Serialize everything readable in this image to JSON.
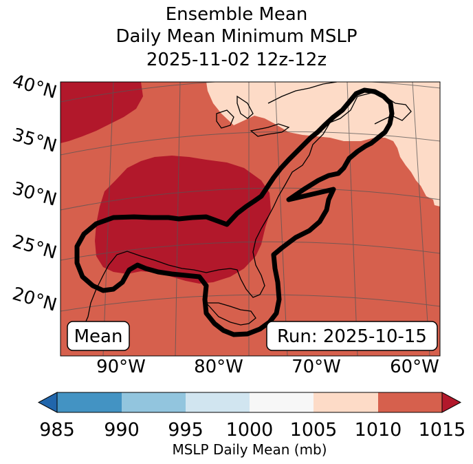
{
  "title": {
    "line1": "Ensemble Mean",
    "line2": "Daily Mean Minimum MSLP",
    "line3": "2025-11-02 12z-12z"
  },
  "map": {
    "lat_labels": [
      "40°N",
      "35°N",
      "30°N",
      "25°N",
      "20°N"
    ],
    "lon_labels": [
      "90°W",
      "80°W",
      "70°W",
      "60°W"
    ],
    "mean_box": "Mean",
    "run_box": "Run: 2025-10-15",
    "contour_icon": "mslp-contour-outline",
    "colors": {
      "c1005_1010": "#fddbc7",
      "c1010_1015": "#d6604d",
      "c1015_plus": "#b2182b",
      "contour": "#000000",
      "coast": "#000000",
      "grid": "#555555"
    }
  },
  "colorbar": {
    "ticks": [
      "985",
      "990",
      "995",
      "1000",
      "1005",
      "1010",
      "1015"
    ],
    "label": "MSLP Daily Mean (mb)",
    "bins": [
      {
        "from": 985,
        "to": 990,
        "color": "#4393c3"
      },
      {
        "from": 990,
        "to": 995,
        "color": "#92c5de"
      },
      {
        "from": 995,
        "to": 1000,
        "color": "#d1e5f0"
      },
      {
        "from": 1000,
        "to": 1005,
        "color": "#f7f7f7"
      },
      {
        "from": 1005,
        "to": 1010,
        "color": "#fddbc7"
      },
      {
        "from": 1010,
        "to": 1015,
        "color": "#d6604d"
      }
    ],
    "under_color": "#2166ac",
    "over_color": "#b2182b"
  }
}
